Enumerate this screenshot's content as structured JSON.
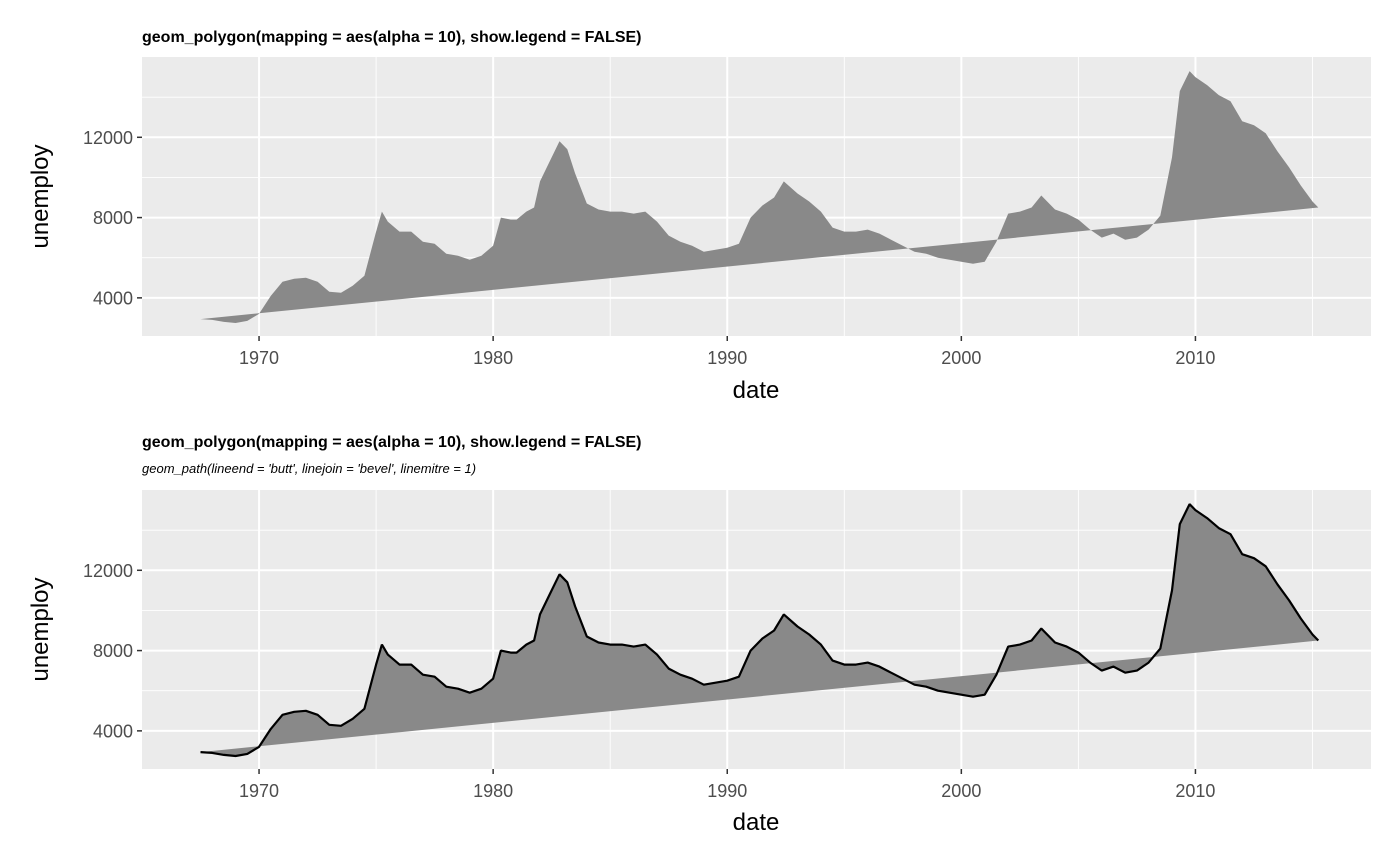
{
  "chart_data": [
    {
      "type": "area",
      "title": "geom_polygon(mapping = aes(alpha = 10), show.legend = FALSE)",
      "subtitle": "",
      "xlabel": "date",
      "ylabel": "unemploy",
      "x_tick_labels": [
        "1970",
        "1980",
        "1990",
        "2000",
        "2010"
      ],
      "y_tick_labels": [
        "4000",
        "8000",
        "12000"
      ],
      "xlim": [
        "1965-01-01",
        "2017-07-01"
      ],
      "ylim": [
        2100,
        16000
      ],
      "grid": true,
      "outline": false,
      "fill_color": "#898989",
      "panel_background": "#ebebeb",
      "series": [
        {
          "x": [
            "1967-07-01",
            "1968-01-01",
            "1968-07-01",
            "1969-01-01",
            "1969-07-01",
            "1970-01-01",
            "1970-07-01",
            "1971-01-01",
            "1971-07-01",
            "1972-01-01",
            "1972-07-01",
            "1973-01-01",
            "1973-07-01",
            "1974-01-01",
            "1974-07-01",
            "1975-01-01",
            "1975-04-01",
            "1975-07-01",
            "1976-01-01",
            "1976-07-01",
            "1977-01-01",
            "1977-07-01",
            "1978-01-01",
            "1978-07-01",
            "1979-01-01",
            "1979-07-01",
            "1980-01-01",
            "1980-05-01",
            "1980-10-01",
            "1981-01-01",
            "1981-06-01",
            "1981-10-01",
            "1982-01-01",
            "1982-06-01",
            "1982-11-01",
            "1983-03-01",
            "1983-07-01",
            "1984-01-01",
            "1984-07-01",
            "1985-01-01",
            "1985-07-01",
            "1986-01-01",
            "1986-07-01",
            "1987-01-01",
            "1987-07-01",
            "1988-01-01",
            "1988-07-01",
            "1989-01-01",
            "1989-07-01",
            "1990-01-01",
            "1990-07-01",
            "1991-01-01",
            "1991-07-01",
            "1992-01-01",
            "1992-06-01",
            "1993-01-01",
            "1993-07-01",
            "1994-01-01",
            "1994-07-01",
            "1995-01-01",
            "1995-07-01",
            "1996-01-01",
            "1996-07-01",
            "1997-01-01",
            "1997-07-01",
            "1998-01-01",
            "1998-07-01",
            "1999-01-01",
            "1999-07-01",
            "2000-01-01",
            "2000-07-01",
            "2001-01-01",
            "2001-07-01",
            "2002-01-01",
            "2002-07-01",
            "2003-01-01",
            "2003-06-01",
            "2004-01-01",
            "2004-07-01",
            "2005-01-01",
            "2005-07-01",
            "2006-01-01",
            "2006-07-01",
            "2007-01-01",
            "2007-07-01",
            "2008-01-01",
            "2008-07-01",
            "2009-01-01",
            "2009-05-01",
            "2009-10-01",
            "2010-01-01",
            "2010-07-01",
            "2011-01-01",
            "2011-07-01",
            "2012-01-01",
            "2012-07-01",
            "2013-01-01",
            "2013-07-01",
            "2014-01-01",
            "2014-07-01",
            "2015-01-01",
            "2015-04-01"
          ],
          "y": [
            2944,
            2900,
            2800,
            2750,
            2850,
            3200,
            4100,
            4800,
            4950,
            5000,
            4800,
            4300,
            4250,
            4600,
            5100,
            7300,
            8300,
            7800,
            7300,
            7300,
            6800,
            6700,
            6200,
            6100,
            5900,
            6100,
            6600,
            8000,
            7900,
            7900,
            8300,
            8500,
            9800,
            10800,
            11800,
            11400,
            10200,
            8700,
            8400,
            8300,
            8300,
            8200,
            8300,
            7800,
            7100,
            6800,
            6600,
            6300,
            6400,
            6500,
            6700,
            8000,
            8600,
            9000,
            9800,
            9200,
            8800,
            8300,
            7500,
            7300,
            7300,
            7400,
            7200,
            6900,
            6600,
            6300,
            6200,
            6000,
            5900,
            5800,
            5700,
            5800,
            6800,
            8200,
            8300,
            8500,
            9100,
            8400,
            8200,
            7900,
            7400,
            7000,
            7200,
            6900,
            7000,
            7400,
            8100,
            11000,
            14300,
            15300,
            15000,
            14600,
            14100,
            13800,
            12800,
            12600,
            12200,
            11300,
            10500,
            9600,
            8800,
            8500
          ]
        }
      ]
    },
    {
      "type": "area",
      "title": "geom_polygon(mapping = aes(alpha = 10), show.legend = FALSE)",
      "subtitle": "geom_path(lineend = 'butt', linejoin = 'bevel', linemitre = 1)",
      "xlabel": "date",
      "ylabel": "unemploy",
      "x_tick_labels": [
        "1970",
        "1980",
        "1990",
        "2000",
        "2010"
      ],
      "y_tick_labels": [
        "4000",
        "8000",
        "12000"
      ],
      "xlim": [
        "1965-01-01",
        "2017-07-01"
      ],
      "ylim": [
        2100,
        16000
      ],
      "grid": true,
      "outline": true,
      "line_color": "#000000",
      "fill_color": "#898989",
      "panel_background": "#ebebeb",
      "series": [
        {
          "x": [
            "1967-07-01",
            "1968-01-01",
            "1968-07-01",
            "1969-01-01",
            "1969-07-01",
            "1970-01-01",
            "1970-07-01",
            "1971-01-01",
            "1971-07-01",
            "1972-01-01",
            "1972-07-01",
            "1973-01-01",
            "1973-07-01",
            "1974-01-01",
            "1974-07-01",
            "1975-01-01",
            "1975-04-01",
            "1975-07-01",
            "1976-01-01",
            "1976-07-01",
            "1977-01-01",
            "1977-07-01",
            "1978-01-01",
            "1978-07-01",
            "1979-01-01",
            "1979-07-01",
            "1980-01-01",
            "1980-05-01",
            "1980-10-01",
            "1981-01-01",
            "1981-06-01",
            "1981-10-01",
            "1982-01-01",
            "1982-06-01",
            "1982-11-01",
            "1983-03-01",
            "1983-07-01",
            "1984-01-01",
            "1984-07-01",
            "1985-01-01",
            "1985-07-01",
            "1986-01-01",
            "1986-07-01",
            "1987-01-01",
            "1987-07-01",
            "1988-01-01",
            "1988-07-01",
            "1989-01-01",
            "1989-07-01",
            "1990-01-01",
            "1990-07-01",
            "1991-01-01",
            "1991-07-01",
            "1992-01-01",
            "1992-06-01",
            "1993-01-01",
            "1993-07-01",
            "1994-01-01",
            "1994-07-01",
            "1995-01-01",
            "1995-07-01",
            "1996-01-01",
            "1996-07-01",
            "1997-01-01",
            "1997-07-01",
            "1998-01-01",
            "1998-07-01",
            "1999-01-01",
            "1999-07-01",
            "2000-01-01",
            "2000-07-01",
            "2001-01-01",
            "2001-07-01",
            "2002-01-01",
            "2002-07-01",
            "2003-01-01",
            "2003-06-01",
            "2004-01-01",
            "2004-07-01",
            "2005-01-01",
            "2005-07-01",
            "2006-01-01",
            "2006-07-01",
            "2007-01-01",
            "2007-07-01",
            "2008-01-01",
            "2008-07-01",
            "2009-01-01",
            "2009-05-01",
            "2009-10-01",
            "2010-01-01",
            "2010-07-01",
            "2011-01-01",
            "2011-07-01",
            "2012-01-01",
            "2012-07-01",
            "2013-01-01",
            "2013-07-01",
            "2014-01-01",
            "2014-07-01",
            "2015-01-01",
            "2015-04-01"
          ],
          "y": [
            2944,
            2900,
            2800,
            2750,
            2850,
            3200,
            4100,
            4800,
            4950,
            5000,
            4800,
            4300,
            4250,
            4600,
            5100,
            7300,
            8300,
            7800,
            7300,
            7300,
            6800,
            6700,
            6200,
            6100,
            5900,
            6100,
            6600,
            8000,
            7900,
            7900,
            8300,
            8500,
            9800,
            10800,
            11800,
            11400,
            10200,
            8700,
            8400,
            8300,
            8300,
            8200,
            8300,
            7800,
            7100,
            6800,
            6600,
            6300,
            6400,
            6500,
            6700,
            8000,
            8600,
            9000,
            9800,
            9200,
            8800,
            8300,
            7500,
            7300,
            7300,
            7400,
            7200,
            6900,
            6600,
            6300,
            6200,
            6000,
            5900,
            5800,
            5700,
            5800,
            6800,
            8200,
            8300,
            8500,
            9100,
            8400,
            8200,
            7900,
            7400,
            7000,
            7200,
            6900,
            7000,
            7400,
            8100,
            11000,
            14300,
            15300,
            15000,
            14600,
            14100,
            13800,
            12800,
            12600,
            12200,
            11300,
            10500,
            9600,
            8800,
            8500
          ]
        }
      ]
    }
  ]
}
